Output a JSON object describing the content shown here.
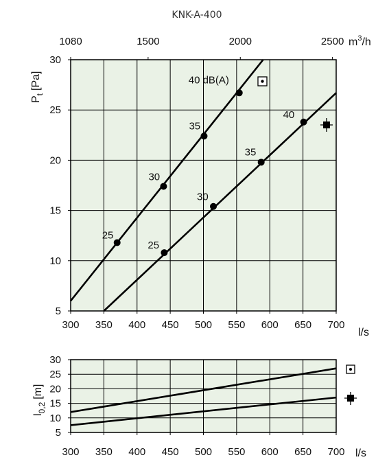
{
  "title": "KNK-A-400",
  "colors": {
    "plot_background": "#eaf2e6",
    "line": "#000000"
  },
  "chart_data": [
    {
      "type": "line",
      "title": "KNK-A-400",
      "xlabel": "l/s",
      "x2label_main": "m",
      "x2label_sup": "3",
      "x2label_rest": "/h",
      "ylabel_main": "P",
      "ylabel_sub": "t",
      "ylabel_rest": "[Pa]",
      "xlim": [
        300,
        700
      ],
      "ylim": [
        5,
        30
      ],
      "x_ticks": [
        "300",
        "350",
        "400",
        "450",
        "500",
        "550",
        "600",
        "650",
        "700"
      ],
      "y_ticks": [
        "5",
        "10",
        "15",
        "20",
        "25",
        "30"
      ],
      "x2_ticks": [
        {
          "label": "1080",
          "value": 300
        },
        {
          "label": "1500",
          "value": 416.67
        },
        {
          "label": "2000",
          "value": 555.56
        },
        {
          "label": "2500",
          "value": 694.44
        }
      ],
      "grid": true,
      "series": [
        {
          "marker": "dot-in-square",
          "line": {
            "x": [
              300,
              590
            ],
            "y": [
              6.0,
              30.0
            ]
          },
          "points": [
            {
              "x": 370,
              "y": 11.8,
              "label": "25"
            },
            {
              "x": 440,
              "y": 17.4,
              "label": "30"
            },
            {
              "x": 501,
              "y": 22.4,
              "label": "35"
            },
            {
              "x": 554,
              "y": 26.7,
              "label": "40 dB(A)"
            }
          ]
        },
        {
          "marker": "square-with-cross",
          "line": {
            "x": [
              350,
              700
            ],
            "y": [
              5.0,
              26.7
            ]
          },
          "points": [
            {
              "x": 441,
              "y": 10.8,
              "label": "25"
            },
            {
              "x": 515,
              "y": 15.4,
              "label": "30"
            },
            {
              "x": 587,
              "y": 19.8,
              "label": "35"
            },
            {
              "x": 651,
              "y": 23.8,
              "label": "40"
            }
          ]
        }
      ]
    },
    {
      "type": "line",
      "xlabel": "l/s",
      "ylabel_main": "l",
      "ylabel_sub": "0,2",
      "ylabel_rest": "[m]",
      "xlim": [
        300,
        700
      ],
      "ylim": [
        5,
        30
      ],
      "x_ticks": [
        "300",
        "350",
        "400",
        "450",
        "500",
        "550",
        "600",
        "650",
        "700"
      ],
      "y_ticks": [
        "5",
        "10",
        "15",
        "20",
        "25",
        "30"
      ],
      "grid": true,
      "series": [
        {
          "marker": "dot-in-square",
          "x": [
            300,
            700
          ],
          "y": [
            12.0,
            27.0
          ]
        },
        {
          "marker": "square-with-cross",
          "x": [
            300,
            700
          ],
          "y": [
            7.5,
            17.0
          ]
        }
      ]
    }
  ]
}
